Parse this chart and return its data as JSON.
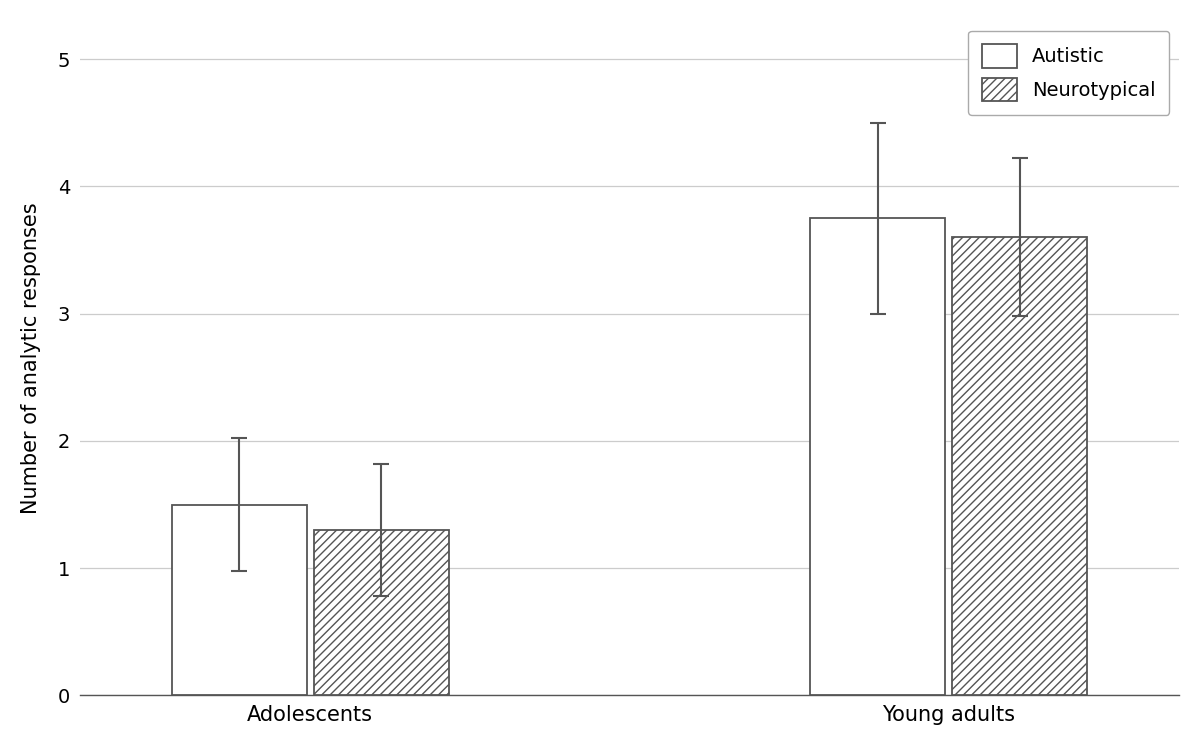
{
  "groups": [
    "Adolescents",
    "Young adults"
  ],
  "autistic_values": [
    1.5,
    3.75
  ],
  "neurotypical_values": [
    1.3,
    3.6
  ],
  "autistic_errors": [
    0.52,
    0.75
  ],
  "neurotypical_errors": [
    0.52,
    0.62
  ],
  "ylabel": "Number of analytic responses",
  "ylim": [
    0,
    5.3
  ],
  "yticks": [
    0,
    1,
    2,
    3,
    4,
    5
  ],
  "bar_width": 0.38,
  "group_centers": [
    1.0,
    2.8
  ],
  "background_color": "#ffffff",
  "legend_labels": [
    "Autistic",
    "Neurotypical"
  ],
  "autistic_color": "#ffffff",
  "neurotypical_hatch": "////",
  "edge_color": "#555555",
  "grid_color": "#cccccc",
  "font_size": 15,
  "tick_font_size": 14,
  "legend_font_size": 14
}
